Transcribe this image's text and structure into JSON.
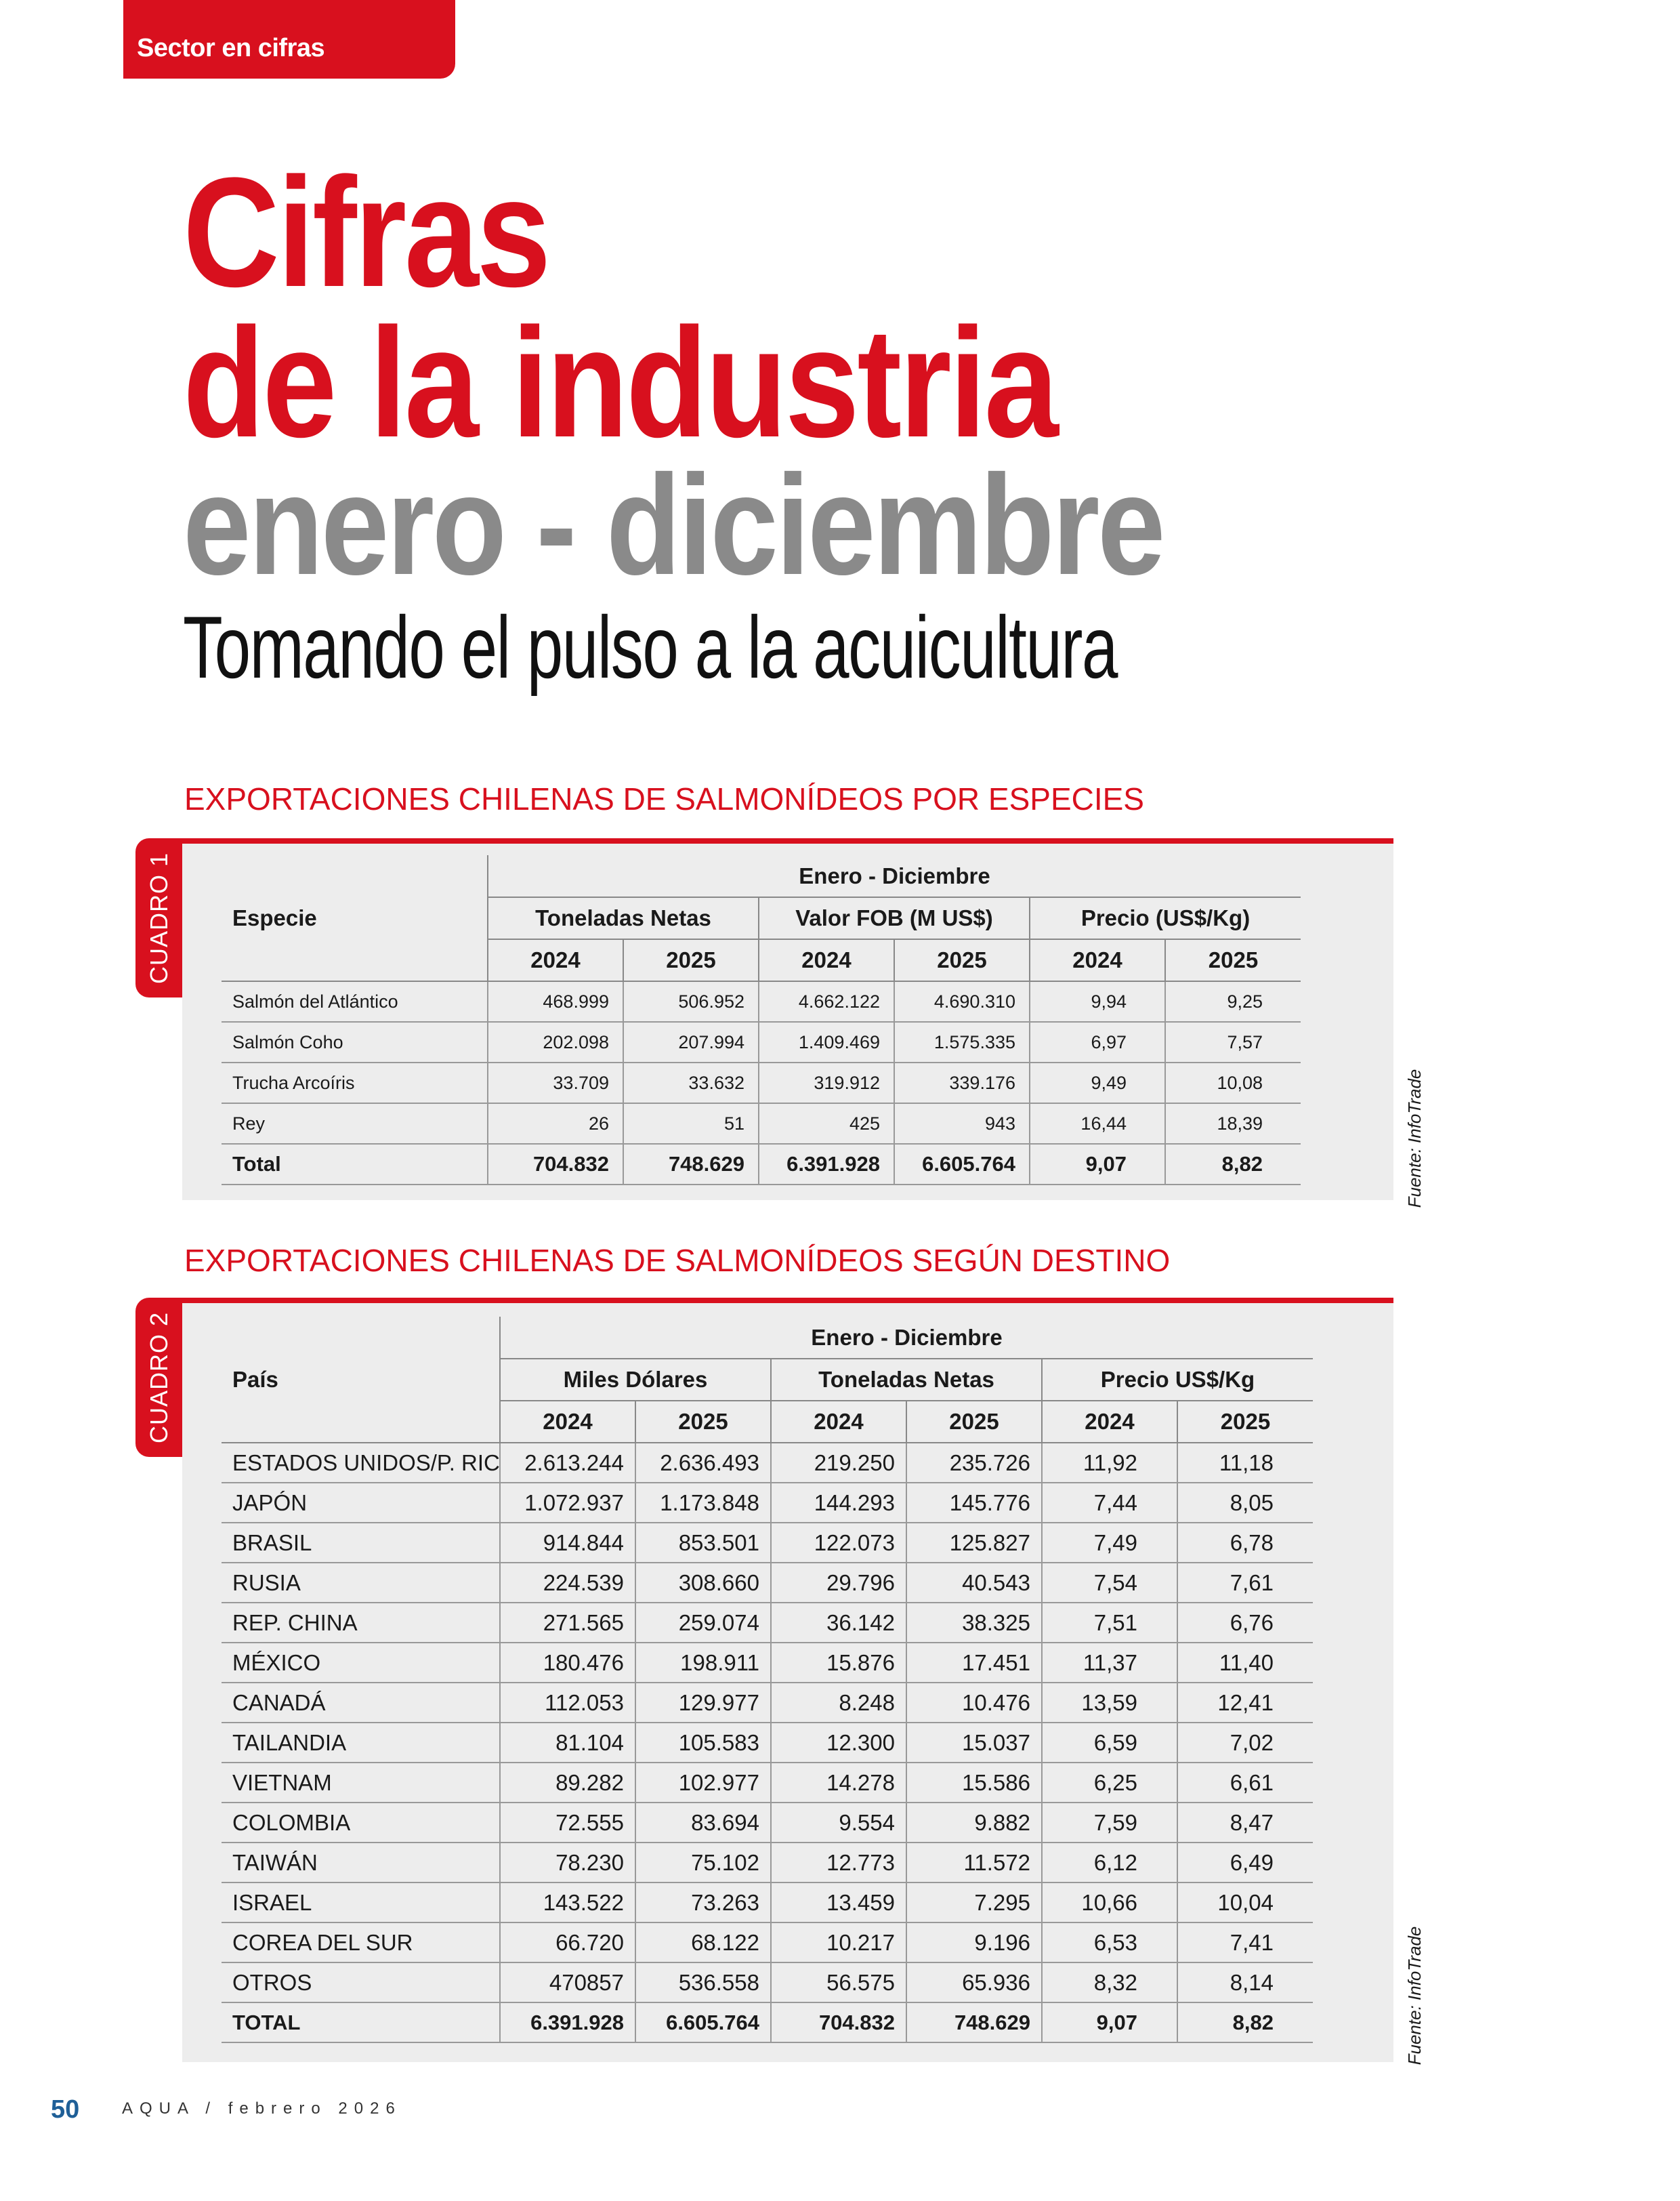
{
  "header": {
    "section": "Sector en cifras"
  },
  "title": {
    "line1": "Cifras",
    "line2": "de la industria",
    "line3": "enero - diciembre",
    "subtitle": "Tomando el pulso a la acuicultura"
  },
  "tables": [
    {
      "heading": "EXPORTACIONES CHILENAS DE SALMONÍDEOS POR ESPECIES",
      "label": "CUADRO 1",
      "source": "Fuente: InfoTrade",
      "first_column": "Especie",
      "period": "Enero - Diciembre",
      "groups": [
        "Toneladas Netas",
        "Valor FOB (M US$)",
        "Precio (US$/Kg)"
      ],
      "years": [
        "2024",
        "2025",
        "2024",
        "2025",
        "2024",
        "2025"
      ],
      "rows": [
        [
          "Salmón del Atlántico",
          "468.999",
          "506.952",
          "4.662.122",
          "4.690.310",
          "9,94",
          "9,25"
        ],
        [
          "Salmón Coho",
          "202.098",
          "207.994",
          "1.409.469",
          "1.575.335",
          "6,97",
          "7,57"
        ],
        [
          "Trucha Arcoíris",
          "33.709",
          "33.632",
          "319.912",
          "339.176",
          "9,49",
          "10,08"
        ],
        [
          "Rey",
          "26",
          "51",
          "425",
          "943",
          "16,44",
          "18,39"
        ]
      ],
      "total": [
        "Total",
        "704.832",
        "748.629",
        "6.391.928",
        "6.605.764",
        "9,07",
        "8,82"
      ]
    },
    {
      "heading": "EXPORTACIONES CHILENAS DE SALMONÍDEOS SEGÚN DESTINO",
      "label": "CUADRO 2",
      "source": "Fuente: InfoTrade",
      "first_column": "País",
      "period": "Enero - Diciembre",
      "groups": [
        "Miles Dólares",
        "Toneladas Netas",
        "Precio US$/Kg"
      ],
      "years": [
        "2024",
        "2025",
        "2024",
        "2025",
        "2024",
        "2025"
      ],
      "rows": [
        [
          "ESTADOS UNIDOS/P. RICO",
          "2.613.244",
          "2.636.493",
          "219.250",
          "235.726",
          "11,92",
          "11,18"
        ],
        [
          "JAPÓN",
          "1.072.937",
          "1.173.848",
          "144.293",
          "145.776",
          "7,44",
          "8,05"
        ],
        [
          "BRASIL",
          "914.844",
          "853.501",
          "122.073",
          "125.827",
          "7,49",
          "6,78"
        ],
        [
          "RUSIA",
          "224.539",
          "308.660",
          "29.796",
          "40.543",
          "7,54",
          "7,61"
        ],
        [
          "REP. CHINA",
          "271.565",
          "259.074",
          "36.142",
          "38.325",
          "7,51",
          "6,76"
        ],
        [
          "MÉXICO",
          "180.476",
          "198.911",
          "15.876",
          "17.451",
          "11,37",
          "11,40"
        ],
        [
          "CANADÁ",
          "112.053",
          "129.977",
          "8.248",
          "10.476",
          "13,59",
          "12,41"
        ],
        [
          "TAILANDIA",
          "81.104",
          "105.583",
          "12.300",
          "15.037",
          "6,59",
          "7,02"
        ],
        [
          "VIETNAM",
          "89.282",
          "102.977",
          "14.278",
          "15.586",
          "6,25",
          "6,61"
        ],
        [
          "COLOMBIA",
          "72.555",
          "83.694",
          "9.554",
          "9.882",
          "7,59",
          "8,47"
        ],
        [
          "TAIWÁN",
          "78.230",
          "75.102",
          "12.773",
          "11.572",
          "6,12",
          "6,49"
        ],
        [
          "ISRAEL",
          "143.522",
          "73.263",
          "13.459",
          "7.295",
          "10,66",
          "10,04"
        ],
        [
          "COREA DEL SUR",
          "66.720",
          "68.122",
          "10.217",
          "9.196",
          "6,53",
          "7,41"
        ],
        [
          "OTROS",
          "470857",
          "536.558",
          "56.575",
          "65.936",
          "8,32",
          "8,14"
        ]
      ],
      "total": [
        "TOTAL",
        "6.391.928",
        "6.605.764",
        "704.832",
        "748.629",
        "9,07",
        "8,82"
      ]
    }
  ],
  "footer": {
    "page": "50",
    "publication": "AQUA / febrero 2026"
  }
}
